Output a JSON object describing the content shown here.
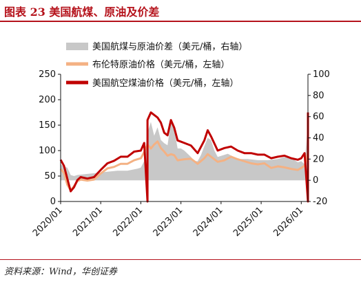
{
  "figure": {
    "title": "图表 23  美国航煤、原油及价差",
    "source": "资料来源：Wind，华创证券"
  },
  "colors": {
    "accent": "#b5121b",
    "spread_fill": "#c8c8c8",
    "brent_line": "#f4b183",
    "jet_line": "#c00000"
  },
  "chart_data": {
    "type": "line",
    "left_axis": {
      "ylim": [
        0,
        250
      ],
      "ticks": [
        "0",
        "50",
        "100",
        "150",
        "200",
        "250"
      ]
    },
    "right_axis": {
      "ylim": [
        -20,
        100
      ],
      "ticks": [
        "-20",
        "0",
        "20",
        "40",
        "60",
        "80",
        "100"
      ]
    },
    "x_axis": {
      "range": [
        "2020-01",
        "2026-03"
      ],
      "ticks": [
        "2020/01",
        "2021/01",
        "2022/01",
        "2023/01",
        "2024/01",
        "2025/01",
        "2026/01"
      ]
    },
    "legend": {
      "placement": "top-center"
    },
    "series": [
      {
        "name": "美国航煤与原油价差（美元/桶，右轴）",
        "type": "area",
        "axis": "right",
        "x": [
          "2020-01",
          "2020-02",
          "2020-03",
          "2020-04",
          "2020-05",
          "2020-06",
          "2020-09",
          "2020-12",
          "2021-03",
          "2021-06",
          "2021-09",
          "2021-12",
          "2022-01",
          "2022-02",
          "2022-03",
          "2022-04",
          "2022-05",
          "2022-06",
          "2022-07",
          "2022-08",
          "2022-09",
          "2022-10",
          "2022-11",
          "2022-12",
          "2023-01",
          "2023-02",
          "2023-03",
          "2023-04",
          "2023-05",
          "2023-06",
          "2023-07",
          "2023-08",
          "2023-09",
          "2023-10",
          "2023-11",
          "2023-12",
          "2024-03",
          "2024-06",
          "2024-09",
          "2024-12",
          "2025-03",
          "2025-06",
          "2025-09",
          "2025-12",
          "2026-01",
          "2026-02",
          "2026-03"
        ],
        "values": [
          15,
          13,
          12,
          5,
          4,
          5,
          6,
          7,
          8,
          9,
          9,
          11,
          12,
          18,
          45,
          55,
          42,
          50,
          38,
          35,
          33,
          55,
          48,
          30,
          30,
          28,
          25,
          22,
          18,
          18,
          24,
          32,
          40,
          38,
          28,
          22,
          25,
          20,
          20,
          19,
          19,
          20,
          23,
          17,
          18,
          15,
          55
        ]
      },
      {
        "name": "布伦特原油价格（美元/桶，左轴）",
        "type": "line",
        "axis": "left",
        "x": [
          "2020-01",
          "2020-02",
          "2020-03",
          "2020-04",
          "2020-05",
          "2020-06",
          "2020-07",
          "2020-09",
          "2020-11",
          "2021-01",
          "2021-03",
          "2021-05",
          "2021-07",
          "2021-09",
          "2021-11",
          "2022-01",
          "2022-02",
          "2022-03",
          "2022-04",
          "2022-05",
          "2022-06",
          "2022-07",
          "2022-08",
          "2022-09",
          "2022-10",
          "2022-11",
          "2022-12",
          "2023-02",
          "2023-04",
          "2023-06",
          "2023-08",
          "2023-09",
          "2023-10",
          "2023-12",
          "2024-02",
          "2024-04",
          "2024-06",
          "2024-08",
          "2024-10",
          "2024-12",
          "2025-02",
          "2025-04",
          "2025-06",
          "2025-08",
          "2025-10",
          "2025-12",
          "2026-01",
          "2026-02",
          "2026-03"
        ],
        "values": [
          64,
          56,
          33,
          22,
          30,
          40,
          43,
          41,
          43,
          55,
          65,
          68,
          74,
          74,
          81,
          85,
          97,
          112,
          104,
          112,
          118,
          105,
          98,
          90,
          93,
          91,
          81,
          83,
          84,
          74,
          85,
          93,
          88,
          78,
          81,
          88,
          83,
          79,
          75,
          73,
          75,
          66,
          69,
          67,
          64,
          62,
          66,
          70,
          95
        ]
      },
      {
        "name": "美国航空煤油价格（美元/桶，左轴）",
        "type": "line",
        "axis": "left",
        "x": [
          "2020-01",
          "2020-02",
          "2020-03",
          "2020-04",
          "2020-05",
          "2020-06",
          "2020-07",
          "2020-09",
          "2020-11",
          "2021-01",
          "2021-03",
          "2021-05",
          "2021-07",
          "2021-09",
          "2021-11",
          "2022-01",
          "2022-02",
          "2022-03",
          "2022-03",
          "2022-04",
          "2022-05",
          "2022-06",
          "2022-07",
          "2022-08",
          "2022-09",
          "2022-10",
          "2022-11",
          "2022-12",
          "2023-02",
          "2023-04",
          "2023-06",
          "2023-08",
          "2023-09",
          "2023-10",
          "2023-12",
          "2024-02",
          "2024-04",
          "2024-06",
          "2024-08",
          "2024-10",
          "2024-12",
          "2025-02",
          "2025-04",
          "2025-06",
          "2025-08",
          "2025-10",
          "2025-12",
          "2026-01",
          "2026-02",
          "2026-03",
          "2026-03",
          "2026-03"
        ],
        "values": [
          82,
          70,
          45,
          20,
          28,
          42,
          48,
          45,
          48,
          62,
          75,
          80,
          88,
          88,
          98,
          100,
          115,
          0,
          160,
          175,
          170,
          165,
          155,
          135,
          130,
          160,
          145,
          120,
          115,
          110,
          95,
          120,
          140,
          128,
          100,
          105,
          108,
          100,
          95,
          95,
          92,
          92,
          85,
          88,
          90,
          85,
          82,
          85,
          95,
          0,
          140,
          175
        ]
      }
    ]
  }
}
